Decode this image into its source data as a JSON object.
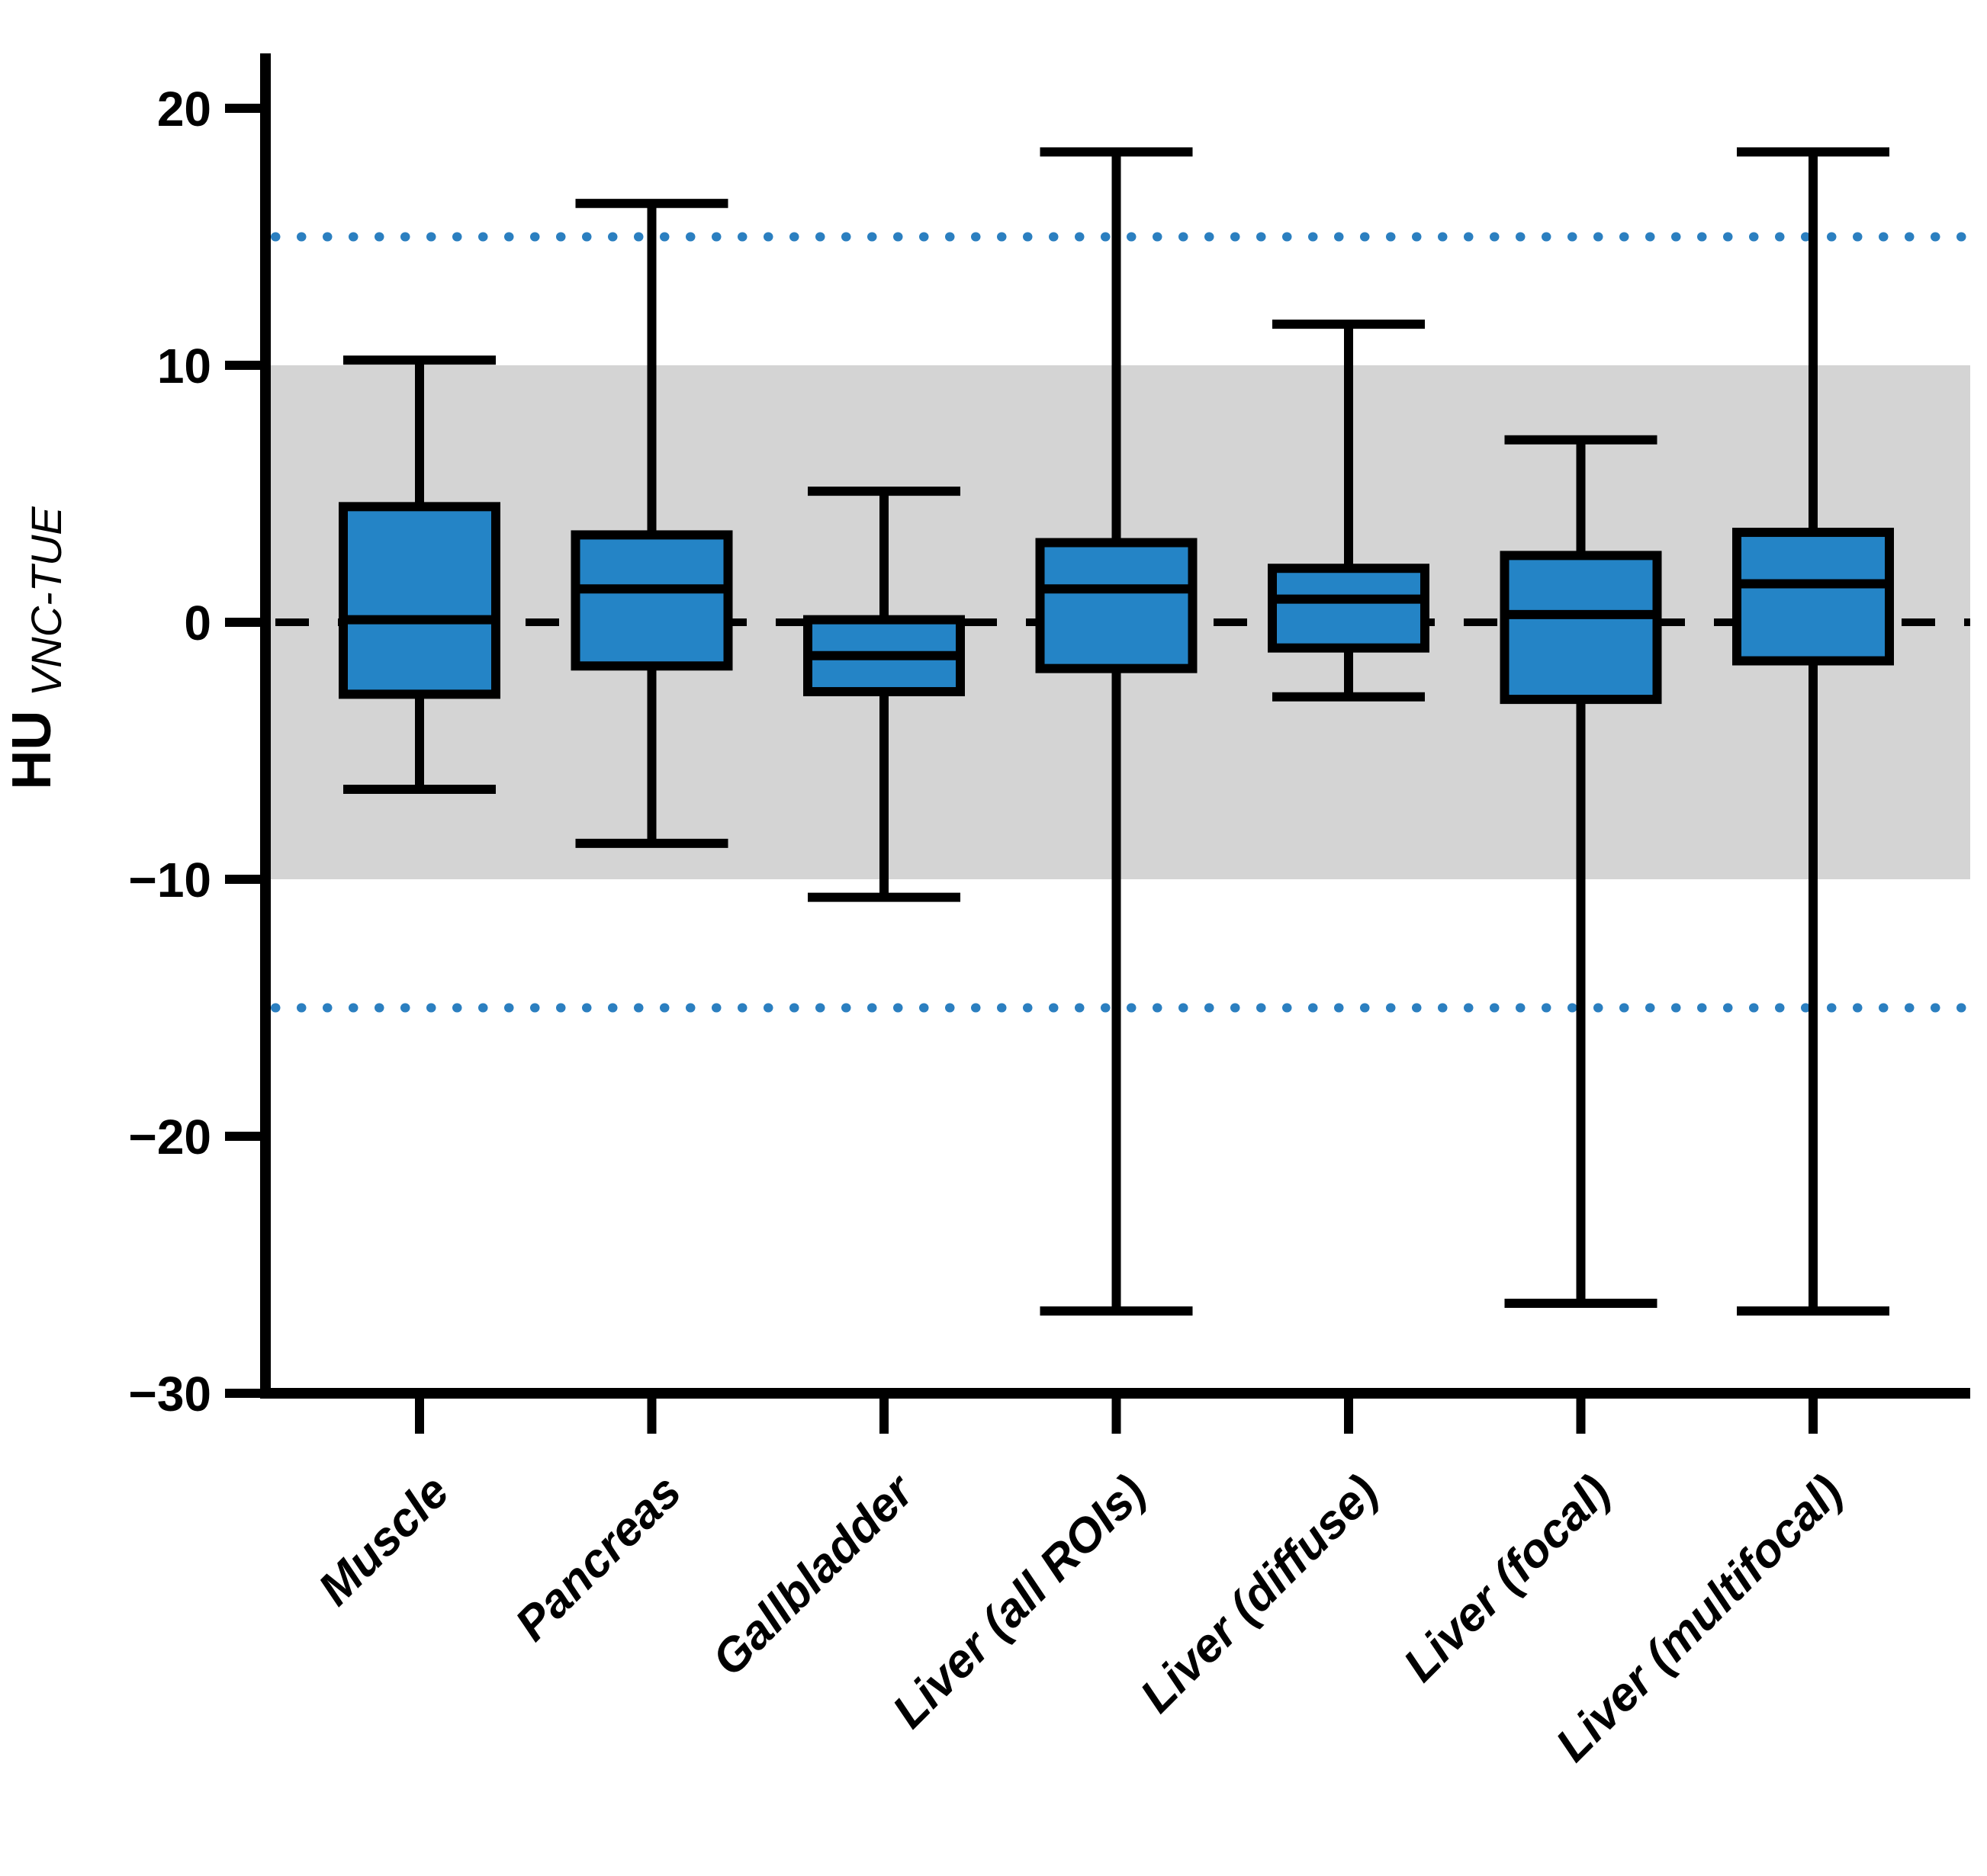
{
  "chart_data": {
    "type": "box",
    "title": "",
    "ylabel_main": "HU",
    "ylabel_sub": "VNC-TUE",
    "xlabel": "",
    "y_ticks": [
      20,
      10,
      0,
      -10,
      -20,
      -30
    ],
    "ylim": [
      -30,
      22
    ],
    "grid": "off",
    "legend": "none",
    "reference_band": {
      "from": -10,
      "to": 10,
      "color": "#d4d4d4"
    },
    "reference_lines": [
      {
        "name": "zero-line",
        "value": 0,
        "style": "dashed",
        "color": "#000000"
      },
      {
        "name": "upper-limit",
        "value": 15,
        "style": "dotted",
        "color": "#2b7fc0"
      },
      {
        "name": "lower-limit",
        "value": -15,
        "style": "dotted",
        "color": "#2b7fc0"
      }
    ],
    "colors": {
      "box_fill": "#2484c6",
      "box_stroke": "#000000",
      "dotted_line": "#2b7fc0",
      "band": "#d4d4d4"
    },
    "categories": [
      "Muscle",
      "Pancreas",
      "Gallbladder",
      "Liver (all ROIs)",
      "Liver (diffuse)",
      "Liver (focal)",
      "Liver (multifocal)"
    ],
    "series": [
      {
        "name": "Muscle",
        "whisker_low": -6.5,
        "q1": -2.8,
        "median": 0.1,
        "q3": 4.5,
        "whisker_high": 10.2
      },
      {
        "name": "Pancreas",
        "whisker_low": -8.6,
        "q1": -1.7,
        "median": 1.3,
        "q3": 3.4,
        "whisker_high": 16.3
      },
      {
        "name": "Gallbladder",
        "whisker_low": -10.7,
        "q1": -2.7,
        "median": -1.3,
        "q3": 0.1,
        "whisker_high": 5.1
      },
      {
        "name": "Liver (all ROIs)",
        "whisker_low": -26.8,
        "q1": -1.8,
        "median": 1.3,
        "q3": 3.1,
        "whisker_high": 18.3
      },
      {
        "name": "Liver (diffuse)",
        "whisker_low": -2.9,
        "q1": -1.0,
        "median": 0.9,
        "q3": 2.1,
        "whisker_high": 11.6
      },
      {
        "name": "Liver (focal)",
        "whisker_low": -26.5,
        "q1": -3.0,
        "median": 0.3,
        "q3": 2.6,
        "whisker_high": 7.1
      },
      {
        "name": "Liver (multifocal)",
        "whisker_low": -26.8,
        "q1": -1.5,
        "median": 1.5,
        "q3": 3.5,
        "whisker_high": 18.3
      }
    ]
  }
}
